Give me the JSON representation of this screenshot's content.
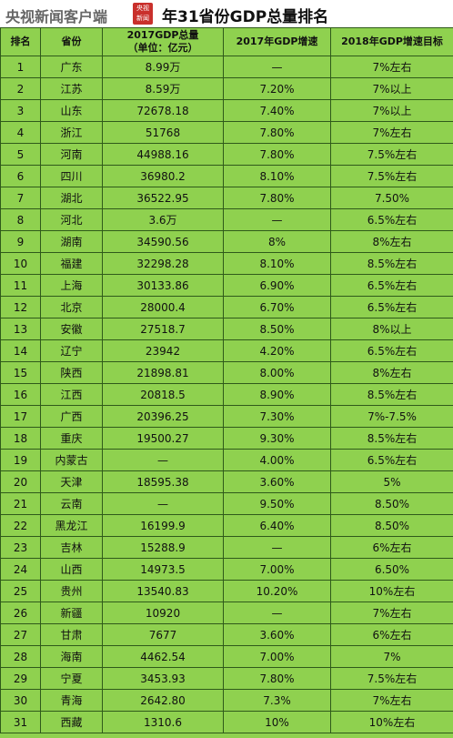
{
  "header": {
    "source": "央视新闻客户端",
    "badge": [
      "央视",
      "新闻"
    ],
    "title": "年31省份GDP总量排名"
  },
  "table": {
    "headers": [
      [
        "排名"
      ],
      [
        "省份"
      ],
      [
        "2017GDP总量",
        "（单位：亿元）"
      ],
      [
        "2017年GDP增速"
      ],
      [
        "2018年GDP增速目标"
      ]
    ],
    "rows": [
      [
        "1",
        "广东",
        "8.99万",
        "—",
        "7%左右"
      ],
      [
        "2",
        "江苏",
        "8.59万",
        "7.20%",
        "7%以上"
      ],
      [
        "3",
        "山东",
        "72678.18",
        "7.40%",
        "7%以上"
      ],
      [
        "4",
        "浙江",
        "51768",
        "7.80%",
        "7%左右"
      ],
      [
        "5",
        "河南",
        "44988.16",
        "7.80%",
        "7.5%左右"
      ],
      [
        "6",
        "四川",
        "36980.2",
        "8.10%",
        "7.5%左右"
      ],
      [
        "7",
        "湖北",
        "36522.95",
        "7.80%",
        "7.50%"
      ],
      [
        "8",
        "河北",
        "3.6万",
        "—",
        "6.5%左右"
      ],
      [
        "9",
        "湖南",
        "34590.56",
        "8%",
        "8%左右"
      ],
      [
        "10",
        "福建",
        "32298.28",
        "8.10%",
        "8.5%左右"
      ],
      [
        "11",
        "上海",
        "30133.86",
        "6.90%",
        "6.5%左右"
      ],
      [
        "12",
        "北京",
        "28000.4",
        "6.70%",
        "6.5%左右"
      ],
      [
        "13",
        "安徽",
        "27518.7",
        "8.50%",
        "8%以上"
      ],
      [
        "14",
        "辽宁",
        "23942",
        "4.20%",
        "6.5%左右"
      ],
      [
        "15",
        "陕西",
        "21898.81",
        "8.00%",
        "8%左右"
      ],
      [
        "16",
        "江西",
        "20818.5",
        "8.90%",
        "8.5%左右"
      ],
      [
        "17",
        "广西",
        "20396.25",
        "7.30%",
        "7%-7.5%"
      ],
      [
        "18",
        "重庆",
        "19500.27",
        "9.30%",
        "8.5%左右"
      ],
      [
        "19",
        "内蒙古",
        "—",
        "4.00%",
        "6.5%左右"
      ],
      [
        "20",
        "天津",
        "18595.38",
        "3.60%",
        "5%"
      ],
      [
        "21",
        "云南",
        "—",
        "9.50%",
        "8.50%"
      ],
      [
        "22",
        "黑龙江",
        "16199.9",
        "6.40%",
        "8.50%"
      ],
      [
        "23",
        "吉林",
        "15288.9",
        "—",
        "6%左右"
      ],
      [
        "24",
        "山西",
        "14973.5",
        "7.00%",
        "6.50%"
      ],
      [
        "25",
        "贵州",
        "13540.83",
        "10.20%",
        "10%左右"
      ],
      [
        "26",
        "新疆",
        "10920",
        "—",
        "7%左右"
      ],
      [
        "27",
        "甘肃",
        "7677",
        "3.60%",
        "6%左右"
      ],
      [
        "28",
        "海南",
        "4462.54",
        "7.00%",
        "7%"
      ],
      [
        "29",
        "宁夏",
        "3453.93",
        "7.80%",
        "7.5%左右"
      ],
      [
        "30",
        "青海",
        "2642.80",
        "7.3%",
        "7%左右"
      ],
      [
        "31",
        "西藏",
        "1310.6",
        "10%",
        "10%左右"
      ]
    ]
  }
}
